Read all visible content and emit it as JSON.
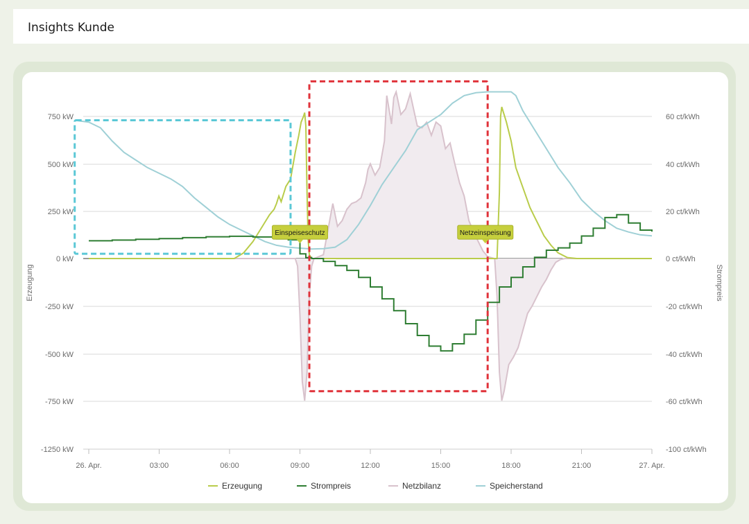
{
  "header": {
    "title": "Insights Kunde"
  },
  "chart_data": {
    "type": "line",
    "x_ticks": [
      "26. Apr.",
      "03:00",
      "06:00",
      "09:00",
      "12:00",
      "15:00",
      "18:00",
      "21:00",
      "27. Apr."
    ],
    "y_left": {
      "label": "Erzeugung",
      "unit": "kW",
      "ticks": [
        750,
        500,
        250,
        0,
        -250,
        -500,
        -750,
        -1250
      ],
      "tick_labels": [
        "750 kW",
        "500 kW",
        "250 kW",
        "0 kW",
        "-250 kW",
        "-500 kW",
        "-750 kW",
        "-1250 kW"
      ],
      "range": [
        -1250,
        1000
      ]
    },
    "y_right": {
      "label": "Strompreis",
      "unit": "ct/kWh",
      "ticks": [
        60,
        40,
        20,
        0,
        -20,
        -40,
        -60,
        -100
      ],
      "tick_labels": [
        "60 ct/kWh",
        "40 ct/kWh",
        "20 ct/kWh",
        "0 ct/kWh",
        "-20 ct/kWh",
        "-40 ct/kWh",
        "-60 ct/kWh",
        "-100 ct/kWh"
      ]
    },
    "legend": [
      {
        "name": "Erzeugung",
        "color": "#b9cc4a"
      },
      {
        "name": "Strompreis",
        "color": "#2e7d32"
      },
      {
        "name": "Netzbilanz",
        "color": "#d8c2cc"
      },
      {
        "name": "Speicherstand",
        "color": "#9fd0d6"
      }
    ],
    "annotations": [
      {
        "text": "Einspeiseschutz",
        "x_hour": 9.0,
        "y_kw": 80
      },
      {
        "text": "Netzeinspeisung",
        "x_hour": 16.9,
        "y_kw": 80
      }
    ],
    "highlight_boxes": [
      {
        "color": "#5bc8d6",
        "x_hours": [
          -0.6,
          8.6
        ],
        "y_kw": [
          730,
          25
        ]
      },
      {
        "color": "#e0323a",
        "x_hours": [
          9.4,
          17.0
        ],
        "y_kw": [
          935,
          -700
        ]
      }
    ],
    "series": [
      {
        "name": "Erzeugung",
        "color": "#b9cc4a",
        "points": [
          [
            0,
            0
          ],
          [
            6.2,
            0
          ],
          [
            6.6,
            30
          ],
          [
            7.0,
            90
          ],
          [
            7.4,
            170
          ],
          [
            7.7,
            230
          ],
          [
            7.9,
            260
          ],
          [
            8.0,
            290
          ],
          [
            8.1,
            330
          ],
          [
            8.2,
            300
          ],
          [
            8.4,
            380
          ],
          [
            8.6,
            420
          ],
          [
            8.8,
            560
          ],
          [
            8.95,
            650
          ],
          [
            9.05,
            720
          ],
          [
            9.15,
            750
          ],
          [
            9.2,
            770
          ],
          [
            9.25,
            700
          ],
          [
            9.3,
            350
          ],
          [
            9.35,
            100
          ],
          [
            9.4,
            20
          ],
          [
            9.5,
            0
          ],
          [
            17.4,
            0
          ],
          [
            17.5,
            350
          ],
          [
            17.55,
            750
          ],
          [
            17.6,
            800
          ],
          [
            17.8,
            720
          ],
          [
            18.0,
            620
          ],
          [
            18.2,
            480
          ],
          [
            18.4,
            410
          ],
          [
            18.6,
            340
          ],
          [
            18.8,
            270
          ],
          [
            19.0,
            220
          ],
          [
            19.2,
            170
          ],
          [
            19.4,
            120
          ],
          [
            19.7,
            70
          ],
          [
            20.0,
            30
          ],
          [
            20.4,
            5
          ],
          [
            20.8,
            0
          ],
          [
            24,
            0
          ]
        ]
      },
      {
        "name": "Strompreis",
        "unit": "ct/kWh",
        "color": "#2e7d32",
        "points": [
          [
            0,
            7.5
          ],
          [
            1.0,
            7.8
          ],
          [
            2.0,
            8.1
          ],
          [
            3.0,
            8.4
          ],
          [
            4.0,
            8.8
          ],
          [
            5.0,
            9.2
          ],
          [
            6.0,
            9.4
          ],
          [
            7.0,
            9.1
          ],
          [
            8.0,
            8.3
          ],
          [
            8.5,
            7.9
          ],
          [
            9.0,
            2.0
          ],
          [
            9.25,
            0.4
          ],
          [
            9.5,
            0.0
          ],
          [
            10.0,
            -1.2
          ],
          [
            10.5,
            -3.0
          ],
          [
            11.0,
            -5.0
          ],
          [
            11.5,
            -8.0
          ],
          [
            12.0,
            -12.0
          ],
          [
            12.5,
            -17.0
          ],
          [
            13.0,
            -22.0
          ],
          [
            13.5,
            -27.5
          ],
          [
            14.0,
            -32.5
          ],
          [
            14.5,
            -37.0
          ],
          [
            15.0,
            -39.0
          ],
          [
            15.5,
            -36.0
          ],
          [
            16.0,
            -32.0
          ],
          [
            16.5,
            -26.0
          ],
          [
            17.0,
            -18.5
          ],
          [
            17.5,
            -12.0
          ],
          [
            18.0,
            -8.0
          ],
          [
            18.5,
            -3.5
          ],
          [
            19.0,
            0.5
          ],
          [
            19.5,
            3.5
          ],
          [
            20.0,
            4.5
          ],
          [
            20.5,
            6.5
          ],
          [
            21.0,
            9.5
          ],
          [
            21.5,
            12.8
          ],
          [
            22.0,
            17.3
          ],
          [
            22.5,
            18.5
          ],
          [
            23.0,
            15.0
          ],
          [
            23.5,
            12.0
          ],
          [
            24,
            11.4
          ]
        ]
      },
      {
        "name": "Netzbilanz",
        "color": "#d8c2cc",
        "points": [
          [
            0,
            0
          ],
          [
            8.8,
            0
          ],
          [
            8.9,
            -40
          ],
          [
            9.0,
            -300
          ],
          [
            9.1,
            -650
          ],
          [
            9.2,
            -750
          ],
          [
            9.3,
            -600
          ],
          [
            9.4,
            -200
          ],
          [
            9.5,
            -40
          ],
          [
            9.6,
            0
          ],
          [
            10.0,
            20
          ],
          [
            10.4,
            290
          ],
          [
            10.6,
            170
          ],
          [
            10.8,
            200
          ],
          [
            11.0,
            260
          ],
          [
            11.2,
            290
          ],
          [
            11.4,
            300
          ],
          [
            11.6,
            320
          ],
          [
            11.8,
            400
          ],
          [
            11.9,
            470
          ],
          [
            12.0,
            500
          ],
          [
            12.2,
            440
          ],
          [
            12.4,
            480
          ],
          [
            12.6,
            620
          ],
          [
            12.7,
            860
          ],
          [
            12.9,
            710
          ],
          [
            13.0,
            850
          ],
          [
            13.1,
            880
          ],
          [
            13.3,
            760
          ],
          [
            13.5,
            790
          ],
          [
            13.7,
            870
          ],
          [
            14.0,
            700
          ],
          [
            14.2,
            690
          ],
          [
            14.4,
            720
          ],
          [
            14.6,
            650
          ],
          [
            14.8,
            720
          ],
          [
            15.0,
            700
          ],
          [
            15.2,
            580
          ],
          [
            15.4,
            610
          ],
          [
            15.6,
            500
          ],
          [
            15.8,
            400
          ],
          [
            16.0,
            330
          ],
          [
            16.2,
            200
          ],
          [
            16.4,
            140
          ],
          [
            16.6,
            90
          ],
          [
            16.8,
            40
          ],
          [
            17.0,
            10
          ],
          [
            17.3,
            0
          ],
          [
            17.4,
            -200
          ],
          [
            17.5,
            -600
          ],
          [
            17.6,
            -750
          ],
          [
            17.7,
            -700
          ],
          [
            17.9,
            -560
          ],
          [
            18.1,
            -520
          ],
          [
            18.3,
            -470
          ],
          [
            18.5,
            -380
          ],
          [
            18.7,
            -290
          ],
          [
            18.9,
            -250
          ],
          [
            19.1,
            -200
          ],
          [
            19.3,
            -150
          ],
          [
            19.5,
            -110
          ],
          [
            19.7,
            -60
          ],
          [
            19.9,
            -20
          ],
          [
            20.1,
            -5
          ],
          [
            20.3,
            0
          ],
          [
            24,
            0
          ]
        ]
      },
      {
        "name": "Speicherstand",
        "color": "#9fd0d6",
        "points": [
          [
            -0.6,
            730
          ],
          [
            0,
            720
          ],
          [
            0.5,
            690
          ],
          [
            1.0,
            620
          ],
          [
            1.5,
            560
          ],
          [
            2.0,
            520
          ],
          [
            2.5,
            480
          ],
          [
            3.0,
            450
          ],
          [
            3.5,
            420
          ],
          [
            4.0,
            380
          ],
          [
            4.5,
            320
          ],
          [
            5.0,
            270
          ],
          [
            5.5,
            220
          ],
          [
            6.0,
            180
          ],
          [
            6.5,
            150
          ],
          [
            7.0,
            120
          ],
          [
            7.5,
            90
          ],
          [
            8.0,
            70
          ],
          [
            8.5,
            60
          ],
          [
            9.0,
            55
          ],
          [
            9.5,
            50
          ],
          [
            10.0,
            52
          ],
          [
            10.5,
            60
          ],
          [
            11.0,
            100
          ],
          [
            11.5,
            180
          ],
          [
            12.0,
            280
          ],
          [
            12.5,
            390
          ],
          [
            13.0,
            480
          ],
          [
            13.5,
            570
          ],
          [
            14.0,
            680
          ],
          [
            14.5,
            720
          ],
          [
            15.0,
            760
          ],
          [
            15.5,
            820
          ],
          [
            16.0,
            860
          ],
          [
            16.5,
            875
          ],
          [
            17.0,
            880
          ],
          [
            17.5,
            880
          ],
          [
            18.0,
            880
          ],
          [
            18.2,
            860
          ],
          [
            18.5,
            780
          ],
          [
            19.0,
            680
          ],
          [
            19.5,
            580
          ],
          [
            20.0,
            480
          ],
          [
            20.5,
            400
          ],
          [
            21.0,
            310
          ],
          [
            21.5,
            250
          ],
          [
            22.0,
            200
          ],
          [
            22.5,
            160
          ],
          [
            23.0,
            140
          ],
          [
            23.5,
            125
          ],
          [
            24,
            120
          ]
        ]
      }
    ]
  }
}
